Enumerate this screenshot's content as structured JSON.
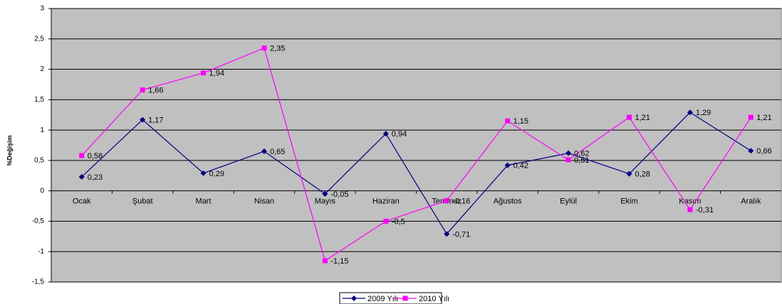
{
  "chart_data": {
    "type": "line",
    "y_label": "%Değişim",
    "categories": [
      "Ocak",
      "Şubat",
      "Mart",
      "Nisan",
      "Mayıs",
      "Haziran",
      "Temmuz",
      "Ağustos",
      "Eylül",
      "Ekim",
      "Kasım",
      "Aralık"
    ],
    "series": [
      {
        "name": "2009 Yılı",
        "color": "#000080",
        "marker": "diamond",
        "values": [
          0.23,
          1.17,
          0.29,
          0.65,
          -0.05,
          0.94,
          -0.71,
          0.42,
          0.62,
          0.28,
          1.29,
          0.66
        ],
        "value_labels": [
          "0,23",
          "1,17",
          "0,29",
          "0,65",
          "-0,05",
          "0,94",
          "-0,71",
          "0,42",
          "0,62",
          "0,28",
          "1,29",
          "0,66"
        ]
      },
      {
        "name": "2010 Yılı",
        "color": "#ff00ff",
        "marker": "square",
        "values": [
          0.58,
          1.66,
          1.94,
          2.35,
          -1.15,
          -0.5,
          -0.16,
          1.15,
          0.51,
          1.21,
          -0.31,
          1.21
        ],
        "value_labels": [
          "0,58",
          "1,66",
          "1,94",
          "2,35",
          "-1,15",
          "-0,5",
          "-0,16",
          "1,15",
          "0,51",
          "1,21",
          "-0,31",
          "1,21"
        ]
      }
    ],
    "ylim": [
      -1.5,
      3
    ],
    "yticks": [
      {
        "value": -1.5,
        "label": "-1,5"
      },
      -1,
      {
        "value": -0.5,
        "label": "-0,5"
      },
      0,
      {
        "value": 0.5,
        "label": "0,5"
      },
      1,
      {
        "value": 1.5,
        "label": "1,5"
      },
      2,
      {
        "value": 2.5,
        "label": "2,5"
      },
      3
    ],
    "grid": true,
    "background": "#c0c0c0",
    "legend": "bottom"
  }
}
